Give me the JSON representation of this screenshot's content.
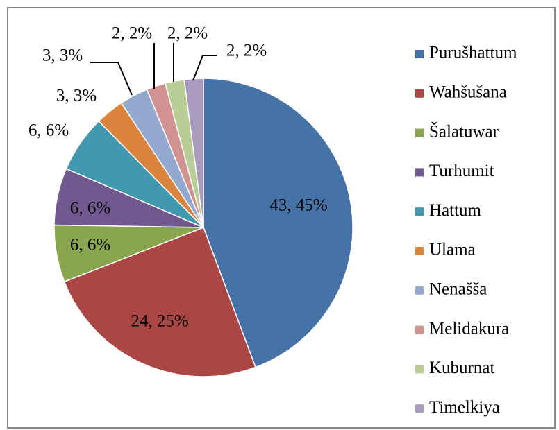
{
  "chart_data": {
    "type": "pie",
    "categories": [
      "Purušhattum",
      "Wahšušana",
      "Šalatuwar",
      "Turhumit",
      "Hattum",
      "Ulama",
      "Nenašša",
      "Melidakura",
      "Kuburnat",
      "Timelkiya"
    ],
    "values": [
      43,
      24,
      6,
      6,
      6,
      3,
      3,
      2,
      2,
      2
    ],
    "value_labels": [
      "43, 45%",
      "24, 25%",
      "6, 6%",
      "6, 6%",
      "6, 6%",
      "3, 3%",
      "3, 3%",
      "2, 2%",
      "2, 2%",
      "2, 2%"
    ],
    "colors": [
      "#4572A7",
      "#AA4643",
      "#89A54E",
      "#71588F",
      "#4198AF",
      "#DB843D",
      "#93A9CF",
      "#D19392",
      "#B9CD96",
      "#A99BBD"
    ],
    "legend": "right"
  }
}
